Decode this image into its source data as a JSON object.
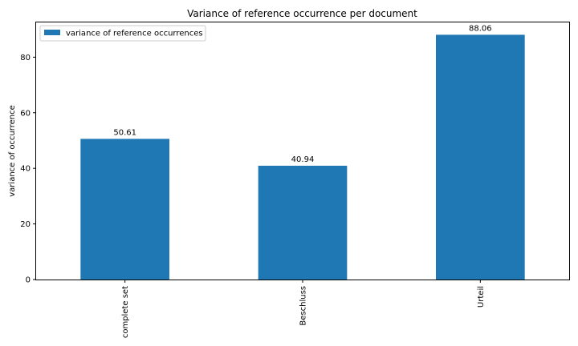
{
  "chart_data": {
    "type": "bar",
    "title": "Variance of reference occurrence per document",
    "xlabel": "",
    "ylabel": "variance of occurrence",
    "categories": [
      "complete set",
      "Beschluss",
      "Urteil"
    ],
    "series": [
      {
        "name": "variance of reference occurrences",
        "values": [
          50.61,
          40.94,
          88.06
        ],
        "color": "#1f77b4"
      }
    ],
    "data_labels": [
      "50.61",
      "40.94",
      "88.06"
    ],
    "ylim": [
      0,
      92.5
    ],
    "yticks": [
      0,
      20,
      40,
      60,
      80
    ],
    "grid": false,
    "legend_position": "top-left",
    "xtick_rotation": "vertical"
  }
}
